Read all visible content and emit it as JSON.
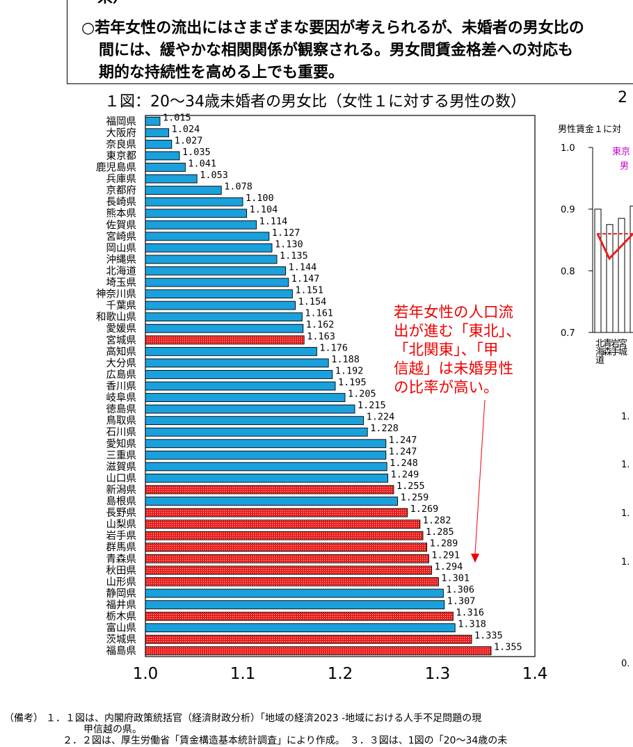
{
  "summary": {
    "line0": "県）",
    "line1": "○若年女性の流出にはさまざまな要因が考えられるが、未婚者の男女比の",
    "line2": "間には、緩やかな相関関係が観察される。男女間賃金格差への対応も",
    "line3": "期的な持続性を高める上でも重要。"
  },
  "chart_data": [
    {
      "type": "bar",
      "orientation": "horizontal",
      "title": "１図：20～34歳未婚者の男女比（女性１に対する男性の数）",
      "xlim": [
        1.0,
        1.4
      ],
      "xticks": [
        "1.0",
        "1.1",
        "1.2",
        "1.3",
        "1.4"
      ],
      "categories": [
        "福岡県",
        "大阪府",
        "奈良県",
        "東京都",
        "鹿児島県",
        "兵庫県",
        "京都府",
        "長崎県",
        "熊本県",
        "佐賀県",
        "宮崎県",
        "岡山県",
        "沖縄県",
        "北海道",
        "埼玉県",
        "神奈川県",
        "千葉県",
        "和歌山県",
        "愛媛県",
        "宮城県",
        "高知県",
        "大分県",
        "広島県",
        "香川県",
        "岐阜県",
        "徳島県",
        "鳥取県",
        "石川県",
        "愛知県",
        "三重県",
        "滋賀県",
        "山口県",
        "新潟県",
        "島根県",
        "長野県",
        "山梨県",
        "岩手県",
        "群馬県",
        "青森県",
        "秋田県",
        "山形県",
        "静岡県",
        "福井県",
        "栃木県",
        "富山県",
        "茨城県",
        "福島県"
      ],
      "values": [
        1.015,
        1.024,
        1.027,
        1.035,
        1.041,
        1.053,
        1.078,
        1.1,
        1.104,
        1.114,
        1.127,
        1.13,
        1.135,
        1.144,
        1.147,
        1.151,
        1.154,
        1.161,
        1.162,
        1.163,
        1.176,
        1.188,
        1.192,
        1.195,
        1.205,
        1.215,
        1.224,
        1.228,
        1.247,
        1.247,
        1.248,
        1.249,
        1.255,
        1.259,
        1.269,
        1.282,
        1.285,
        1.289,
        1.291,
        1.294,
        1.301,
        1.306,
        1.307,
        1.316,
        1.318,
        1.335,
        1.355
      ],
      "value_labels": [
        "1.015",
        "1.024",
        "1.027",
        "1.035",
        "1.041",
        "1.053",
        "1.078",
        "1.100",
        "1.104",
        "1.114",
        "1.127",
        "1.130",
        "1.135",
        "1.144",
        "1.147",
        "1.151",
        "1.154",
        "1.161",
        "1.162",
        "1.163",
        "1.176",
        "1.188",
        "1.192",
        "1.195",
        "1.205",
        "1.215",
        "1.224",
        "1.228",
        "1.247",
        "1.247",
        "1.248",
        "1.249",
        "1.255",
        "1.259",
        "1.269",
        "1.282",
        "1.285",
        "1.289",
        "1.291",
        "1.294",
        "1.301",
        "1.306",
        "1.307",
        "1.316",
        "1.318",
        "1.335",
        "1.355"
      ],
      "highlighted": [
        "宮城県",
        "新潟県",
        "長野県",
        "山梨県",
        "岩手県",
        "群馬県",
        "青森県",
        "秋田県",
        "山形県",
        "栃木県",
        "茨城県",
        "福島県"
      ],
      "annotation": [
        "若年女性の人口流",
        "出が進む「東北」、",
        "「北関東」、「甲",
        "信越」は未婚男性",
        "の比率が高い。"
      ],
      "colors": {
        "normal": "#1aa0dc",
        "highlight": "#e8201e",
        "annotation": "#f00000"
      }
    },
    {
      "type": "bar",
      "title_partial": "2",
      "ylabel_partial": "男性賃金１に対",
      "ylim": [
        0.7,
        1.0
      ],
      "yticks": [
        "1.0",
        "0.9",
        "0.8",
        "0.7"
      ],
      "legend_partial": [
        "東京",
        "男"
      ],
      "categories_partial": [
        "北海道",
        "青森",
        "岩手",
        "宮城"
      ],
      "values_partial": [
        0.9,
        0.875,
        0.885,
        0.905
      ],
      "line_values_partial": [
        0.86,
        0.82,
        0.84,
        0.86
      ],
      "reference_value": 0.86
    }
  ],
  "chart3_partial": {
    "ticks": [
      "1.",
      "1.",
      "1.",
      "1.",
      "0."
    ]
  },
  "notes": {
    "label": "（備考）",
    "n1": "１．１図は、内閣府政策統括官（経済財政分析）「地域の経済2023 -地域における人手不足問題の現",
    "n1b": "甲信越の県。",
    "n2": "２．２図は、厚生労働省「賃金構造基本統計調査」により作成。　３．３図は、1図の「20～34歳の未"
  }
}
